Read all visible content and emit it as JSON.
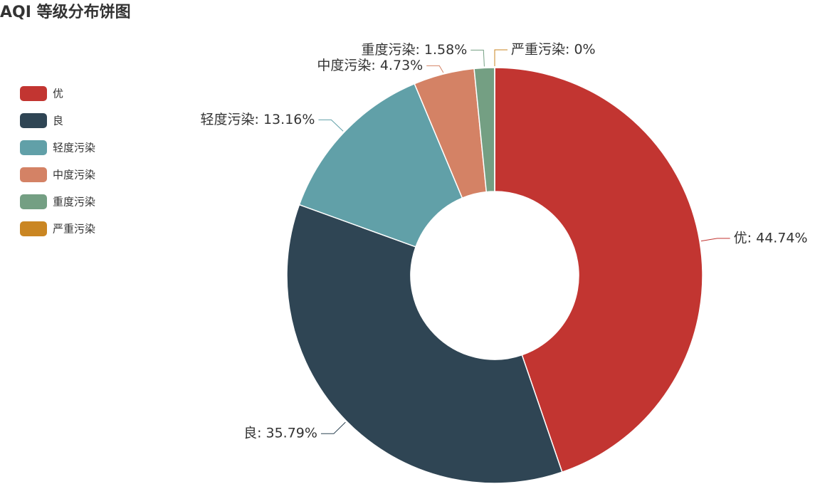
{
  "chart_data": {
    "type": "pie",
    "title": "AQI 等级分布饼图",
    "categories": [
      "优",
      "良",
      "轻度污染",
      "中度污染",
      "重度污染",
      "严重污染"
    ],
    "values": [
      44.74,
      35.79,
      13.16,
      4.73,
      1.58,
      0
    ],
    "value_labels": [
      "优: 44.74%",
      "良: 35.79%",
      "轻度污染: 13.16%",
      "中度污染: 4.73%",
      "重度污染: 1.58%",
      "严重污染: 0%"
    ],
    "colors": [
      "#c23531",
      "#2f4554",
      "#61a0a8",
      "#d48265",
      "#749f83",
      "#ca8622"
    ],
    "legend": "left"
  }
}
